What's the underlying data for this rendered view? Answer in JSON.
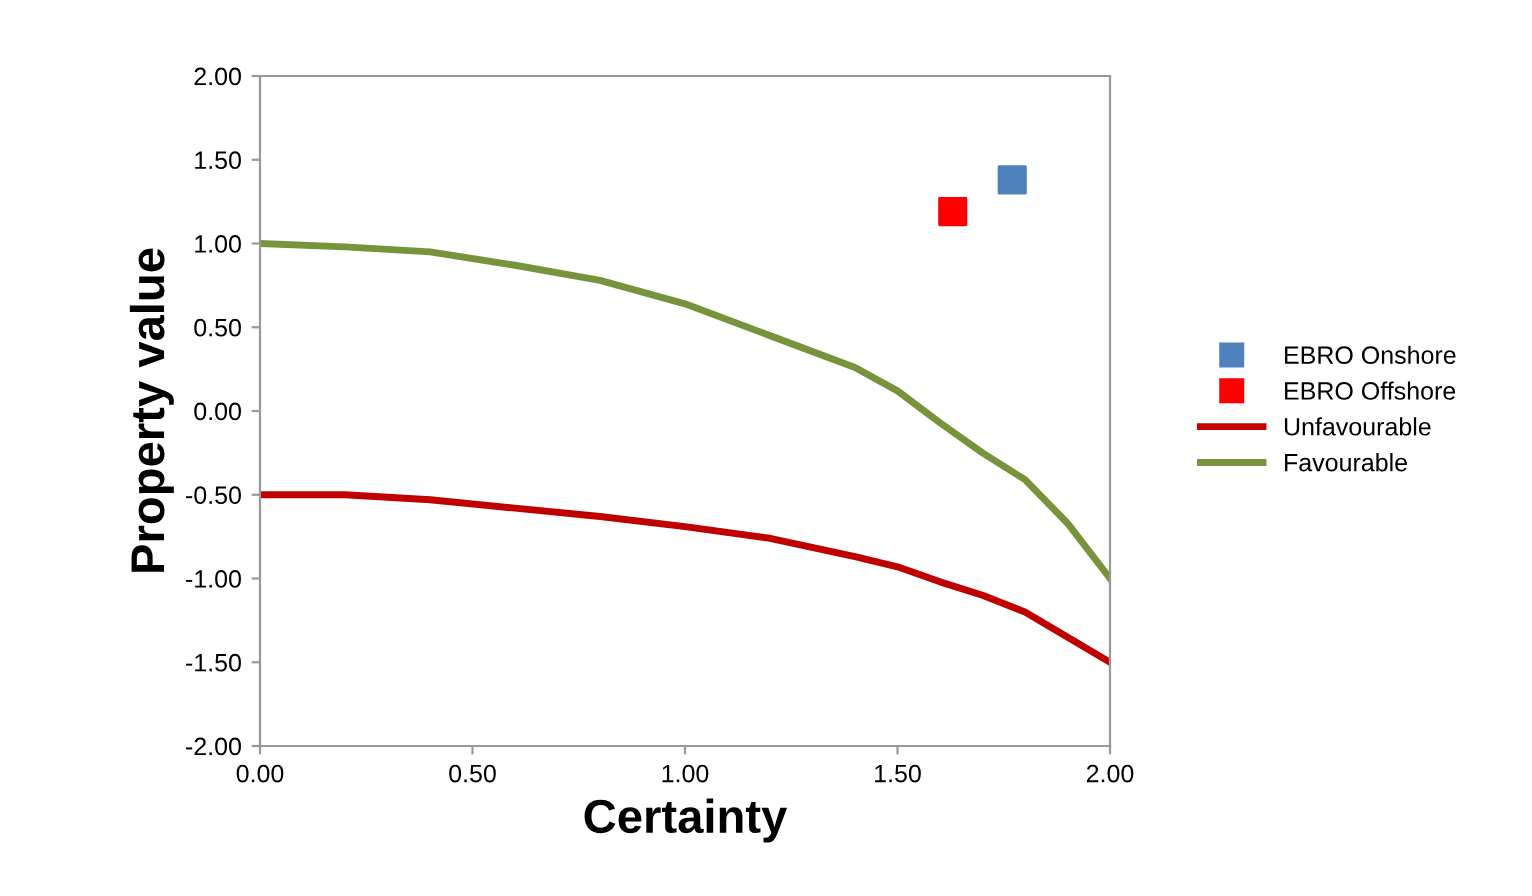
{
  "chart_data": {
    "type": "line",
    "xlabel": "Certainty",
    "ylabel": "Property value",
    "xlim": [
      0,
      2
    ],
    "ylim": [
      -2,
      2
    ],
    "xticks": [
      {
        "value": 0,
        "label": "0.00"
      },
      {
        "value": 0.5,
        "label": "0.50"
      },
      {
        "value": 1,
        "label": "1.00"
      },
      {
        "value": 1.5,
        "label": "1.50"
      },
      {
        "value": 2,
        "label": "2.00"
      }
    ],
    "yticks": [
      {
        "value": -2,
        "label": "-2.00"
      },
      {
        "value": -1.5,
        "label": "-1.50"
      },
      {
        "value": -1,
        "label": "-1.00"
      },
      {
        "value": -0.5,
        "label": "-0.50"
      },
      {
        "value": 0,
        "label": "0.00"
      },
      {
        "value": 0.5,
        "label": "0.50"
      },
      {
        "value": 1,
        "label": "1.00"
      },
      {
        "value": 1.5,
        "label": "1.50"
      },
      {
        "value": 2,
        "label": "2.00"
      }
    ],
    "grid": false,
    "legend": "right",
    "series": [
      {
        "name": "EBRO Onshore",
        "type": "scatter",
        "marker": "square",
        "color": "#4f81bd",
        "x": [
          1.77
        ],
        "values": [
          1.38
        ]
      },
      {
        "name": "EBRO Offshore",
        "type": "scatter",
        "marker": "square",
        "color": "#ff0000",
        "x": [
          1.63
        ],
        "values": [
          1.19
        ]
      },
      {
        "name": "Unfavourable",
        "color": "#c00000",
        "x": [
          0,
          0.2,
          0.4,
          0.6,
          0.8,
          1.0,
          1.2,
          1.4,
          1.5,
          1.6,
          1.7,
          1.8,
          2.0
        ],
        "values": [
          -0.5,
          -0.5,
          -0.53,
          -0.58,
          -0.63,
          -0.69,
          -0.76,
          -0.87,
          -0.93,
          -1.02,
          -1.1,
          -1.2,
          -1.5
        ]
      },
      {
        "name": "Favourable",
        "color": "#77933c",
        "x": [
          0,
          0.2,
          0.4,
          0.6,
          0.8,
          1.0,
          1.2,
          1.4,
          1.5,
          1.6,
          1.7,
          1.8,
          1.9,
          2.0
        ],
        "values": [
          1.0,
          0.98,
          0.95,
          0.87,
          0.78,
          0.64,
          0.45,
          0.26,
          0.12,
          -0.07,
          -0.25,
          -0.41,
          -0.67,
          -1.0
        ]
      }
    ]
  }
}
